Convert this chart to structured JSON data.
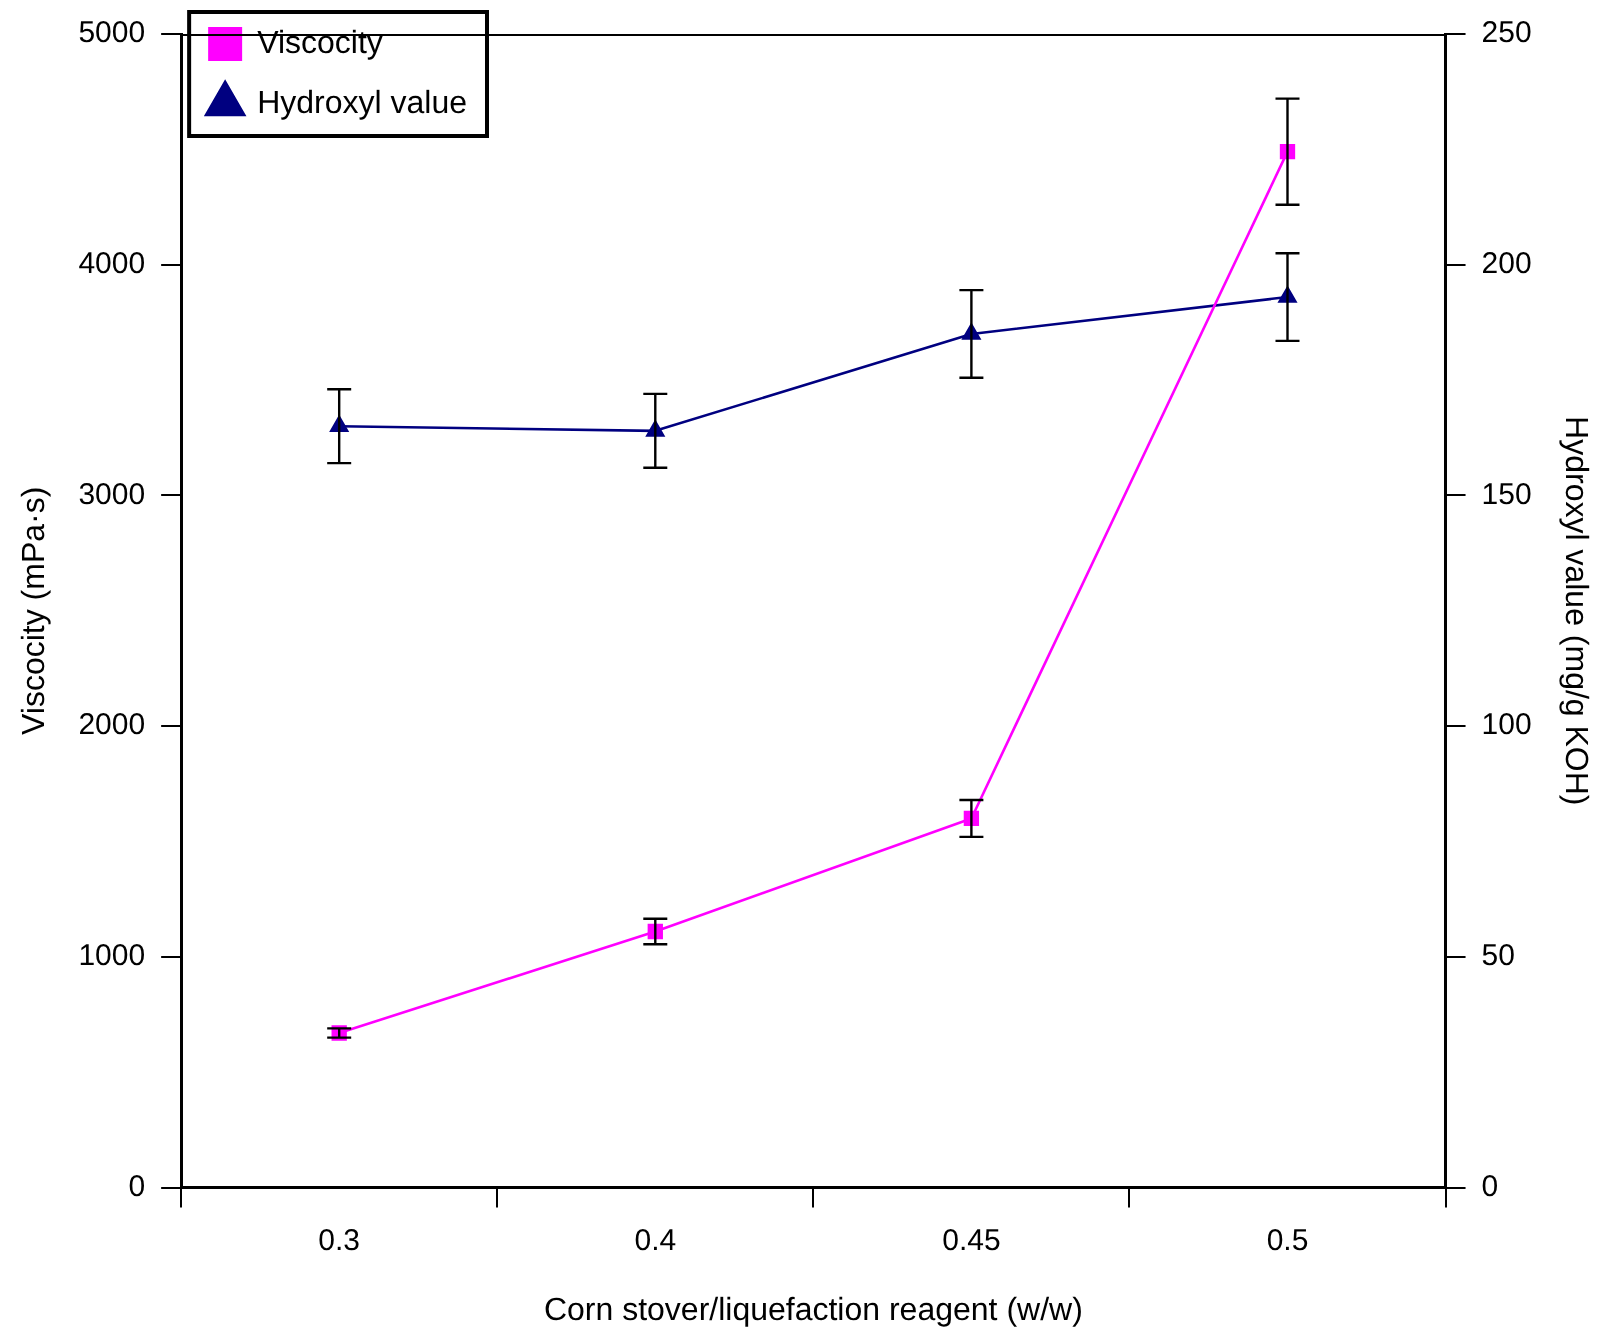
{
  "chart_data": {
    "type": "line",
    "xlabel": "Corn stover/liquefaction reagent (w/w)",
    "ylabel": "Viscocity (mPa·s)",
    "y2label": "Hydroxyl value (mg/g KOH)",
    "categories": [
      "0.3",
      "0.4",
      "0.45",
      "0.5"
    ],
    "series": [
      {
        "name": "Viscocity",
        "color": "#ff00ff",
        "marker": "square",
        "values": [
          670,
          1110,
          1600,
          4490
        ],
        "errors": [
          20,
          55,
          80,
          230
        ]
      },
      {
        "name": "Hydroxyl value",
        "color": "#000080",
        "marker": "triangle",
        "axis": "y2",
        "values": [
          165,
          164,
          185,
          193
        ],
        "errors": [
          8,
          8,
          9.5,
          9.5
        ]
      }
    ],
    "ylim": [
      0,
      5000
    ],
    "yticks": [
      0,
      1000,
      2000,
      3000,
      4000,
      5000
    ],
    "y2lim": [
      0,
      250
    ],
    "y2ticks": [
      0,
      50,
      100,
      150,
      200,
      250
    ],
    "grid": false,
    "legend": "top left",
    "line_style": "solid"
  }
}
